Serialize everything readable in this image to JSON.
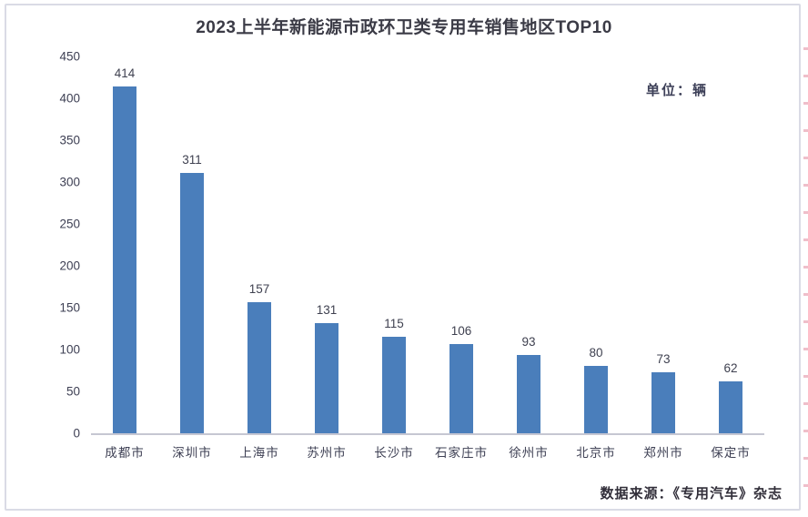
{
  "page": {
    "title": "2023上半年新能源市政环卫类专用车销售地区TOP10",
    "unit_label": "单位：辆",
    "source_note": "数据来源：《专用汽车》杂志"
  },
  "chart_data": {
    "type": "bar",
    "title": "2023上半年新能源市政环卫类专用车销售地区TOP10",
    "unit": "辆",
    "categories": [
      "成都市",
      "深圳市",
      "上海市",
      "苏州市",
      "长沙市",
      "石家庄市",
      "徐州市",
      "北京市",
      "郑州市",
      "保定市"
    ],
    "values": [
      414,
      311,
      157,
      131,
      115,
      106,
      93,
      80,
      73,
      62
    ],
    "data_labels": [
      414,
      311,
      157,
      131,
      115,
      106,
      93,
      80,
      73,
      62
    ],
    "xlabel": "",
    "ylabel": "",
    "ylim": [
      0,
      450
    ],
    "yticks": [
      450,
      400,
      350,
      300,
      250,
      200,
      150,
      100,
      50,
      0
    ],
    "grid": false,
    "legend": "none",
    "bar_color": "#4A7EBB"
  },
  "colors": {
    "bar": "#4A7EBB",
    "axis_line": "#c6c7d2",
    "frame_border": "#dadbe5",
    "text_dark": "#3b3b46",
    "tick_text": "#3e4054",
    "edge_mark": "#e28a9e"
  }
}
